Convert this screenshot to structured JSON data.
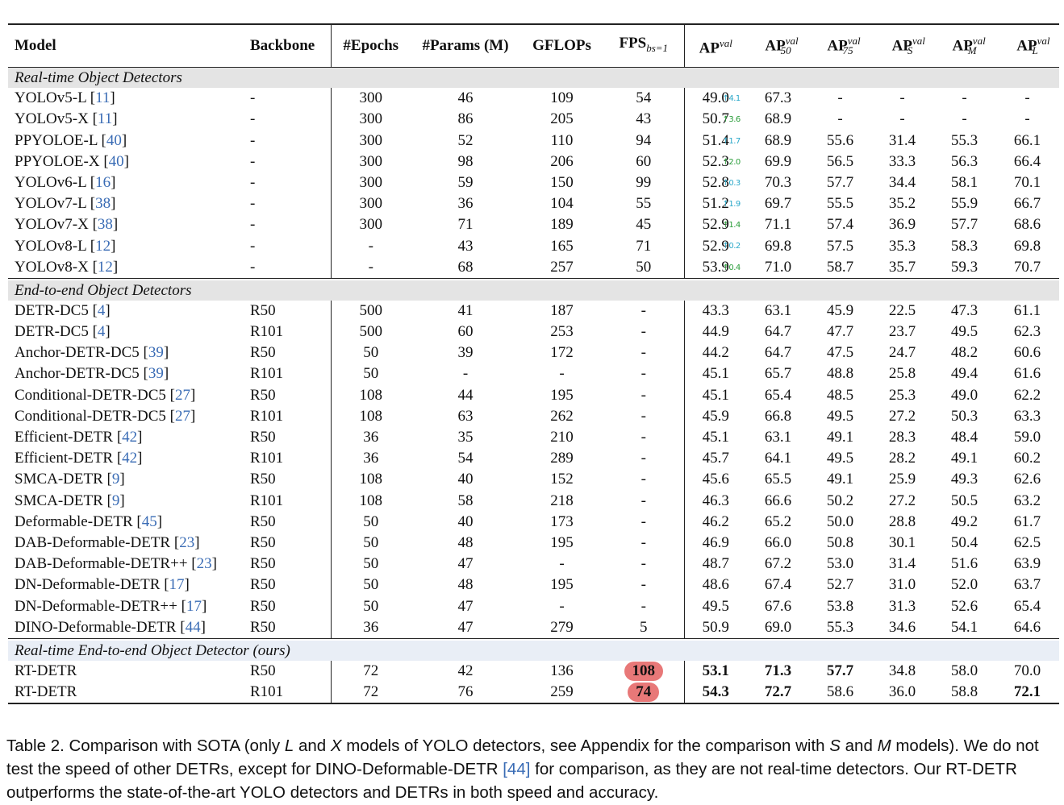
{
  "headers": {
    "model": "Model",
    "backbone": "Backbone",
    "epochs": "#Epochs",
    "params": "#Params (M)",
    "gflops": "GFLOPs",
    "fps": "FPS",
    "fps_sub": "bs=1",
    "ap": "AP",
    "ap_sup": "val",
    "ap50": "AP",
    "ap50_sup": "val",
    "ap50_sub": "50",
    "ap75": "AP",
    "ap75_sup": "val",
    "ap75_sub": "75",
    "aps": "AP",
    "aps_sup": "val",
    "aps_sub": "S",
    "apm": "AP",
    "apm_sup": "val",
    "apm_sub": "M",
    "apl": "AP",
    "apl_sup": "val",
    "apl_sub": "L"
  },
  "sections": [
    {
      "title": "Real-time Object Detectors",
      "rows": [
        {
          "model": "YOLOv5-L",
          "ref": "11",
          "backbone": "-",
          "epochs": "300",
          "params": "46",
          "gflops": "109",
          "fps": "54",
          "ap": "49.0",
          "ap50": "67.3",
          "ap75": "-",
          "aps": "-",
          "apm": "-",
          "apl": "-",
          "note": "↑4.1",
          "note_color": "blue"
        },
        {
          "model": "YOLOv5-X",
          "ref": "11",
          "backbone": "-",
          "epochs": "300",
          "params": "86",
          "gflops": "205",
          "fps": "43",
          "ap": "50.7",
          "ap50": "68.9",
          "ap75": "-",
          "aps": "-",
          "apm": "-",
          "apl": "-",
          "note": "↑3.6",
          "note_color": "green"
        },
        {
          "model": "PPYOLOE-L",
          "ref": "40",
          "backbone": "-",
          "epochs": "300",
          "params": "52",
          "gflops": "110",
          "fps": "94",
          "ap": "51.4",
          "ap50": "68.9",
          "ap75": "55.6",
          "aps": "31.4",
          "apm": "55.3",
          "apl": "66.1",
          "note": "↑1.7",
          "note_color": "blue"
        },
        {
          "model": "PPYOLOE-X",
          "ref": "40",
          "backbone": "-",
          "epochs": "300",
          "params": "98",
          "gflops": "206",
          "fps": "60",
          "ap": "52.3",
          "ap50": "69.9",
          "ap75": "56.5",
          "aps": "33.3",
          "apm": "56.3",
          "apl": "66.4",
          "note": "↑2.0",
          "note_color": "green"
        },
        {
          "model": "YOLOv6-L",
          "ref": "16",
          "backbone": "-",
          "epochs": "300",
          "params": "59",
          "gflops": "150",
          "fps": "99",
          "ap": "52.8",
          "ap50": "70.3",
          "ap75": "57.7",
          "aps": "34.4",
          "apm": "58.1",
          "apl": "70.1",
          "note": "↑0.3",
          "note_color": "blue"
        },
        {
          "model": "YOLOv7-L",
          "ref": "38",
          "backbone": "-",
          "epochs": "300",
          "params": "36",
          "gflops": "104",
          "fps": "55",
          "ap": "51.2",
          "ap50": "69.7",
          "ap75": "55.5",
          "aps": "35.2",
          "apm": "55.9",
          "apl": "66.7",
          "note": "↑1.9",
          "note_color": "blue"
        },
        {
          "model": "YOLOv7-X",
          "ref": "38",
          "backbone": "-",
          "epochs": "300",
          "params": "71",
          "gflops": "189",
          "fps": "45",
          "ap": "52.9",
          "ap50": "71.1",
          "ap75": "57.4",
          "aps": "36.9",
          "apm": "57.7",
          "apl": "68.6",
          "note": "↑1.4",
          "note_color": "green"
        },
        {
          "model": "YOLOv8-L",
          "ref": "12",
          "backbone": "-",
          "epochs": "-",
          "params": "43",
          "gflops": "165",
          "fps": "71",
          "ap": "52.9",
          "ap50": "69.8",
          "ap75": "57.5",
          "aps": "35.3",
          "apm": "58.3",
          "apl": "69.8",
          "note": "↑0.2",
          "note_color": "blue"
        },
        {
          "model": "YOLOv8-X",
          "ref": "12",
          "backbone": "-",
          "epochs": "-",
          "params": "68",
          "gflops": "257",
          "fps": "50",
          "ap": "53.9",
          "ap50": "71.0",
          "ap75": "58.7",
          "aps": "35.7",
          "apm": "59.3",
          "apl": "70.7",
          "note": "↑0.4",
          "note_color": "green"
        }
      ]
    },
    {
      "title": "End-to-end Object Detectors",
      "rows": [
        {
          "model": "DETR-DC5",
          "ref": "4",
          "backbone": "R50",
          "epochs": "500",
          "params": "41",
          "gflops": "187",
          "fps": "-",
          "ap": "43.3",
          "ap50": "63.1",
          "ap75": "45.9",
          "aps": "22.5",
          "apm": "47.3",
          "apl": "61.1"
        },
        {
          "model": "DETR-DC5",
          "ref": "4",
          "backbone": "R101",
          "epochs": "500",
          "params": "60",
          "gflops": "253",
          "fps": "-",
          "ap": "44.9",
          "ap50": "64.7",
          "ap75": "47.7",
          "aps": "23.7",
          "apm": "49.5",
          "apl": "62.3"
        },
        {
          "model": "Anchor-DETR-DC5",
          "ref": "39",
          "backbone": "R50",
          "epochs": "50",
          "params": "39",
          "gflops": "172",
          "fps": "-",
          "ap": "44.2",
          "ap50": "64.7",
          "ap75": "47.5",
          "aps": "24.7",
          "apm": "48.2",
          "apl": "60.6"
        },
        {
          "model": "Anchor-DETR-DC5",
          "ref": "39",
          "backbone": "R101",
          "epochs": "50",
          "params": "-",
          "gflops": "-",
          "fps": "-",
          "ap": "45.1",
          "ap50": "65.7",
          "ap75": "48.8",
          "aps": "25.8",
          "apm": "49.4",
          "apl": "61.6"
        },
        {
          "model": "Conditional-DETR-DC5",
          "ref": "27",
          "backbone": "R50",
          "epochs": "108",
          "params": "44",
          "gflops": "195",
          "fps": "-",
          "ap": "45.1",
          "ap50": "65.4",
          "ap75": "48.5",
          "aps": "25.3",
          "apm": "49.0",
          "apl": "62.2"
        },
        {
          "model": "Conditional-DETR-DC5",
          "ref": "27",
          "backbone": "R101",
          "epochs": "108",
          "params": "63",
          "gflops": "262",
          "fps": "-",
          "ap": "45.9",
          "ap50": "66.8",
          "ap75": "49.5",
          "aps": "27.2",
          "apm": "50.3",
          "apl": "63.3"
        },
        {
          "model": "Efficient-DETR",
          "ref": "42",
          "backbone": "R50",
          "epochs": "36",
          "params": "35",
          "gflops": "210",
          "fps": "-",
          "ap": "45.1",
          "ap50": "63.1",
          "ap75": "49.1",
          "aps": "28.3",
          "apm": "48.4",
          "apl": "59.0"
        },
        {
          "model": "Efficient-DETR",
          "ref": "42",
          "backbone": "R101",
          "epochs": "36",
          "params": "54",
          "gflops": "289",
          "fps": "-",
          "ap": "45.7",
          "ap50": "64.1",
          "ap75": "49.5",
          "aps": "28.2",
          "apm": "49.1",
          "apl": "60.2"
        },
        {
          "model": "SMCA-DETR",
          "ref": "9",
          "backbone": "R50",
          "epochs": "108",
          "params": "40",
          "gflops": "152",
          "fps": "-",
          "ap": "45.6",
          "ap50": "65.5",
          "ap75": "49.1",
          "aps": "25.9",
          "apm": "49.3",
          "apl": "62.6"
        },
        {
          "model": "SMCA-DETR",
          "ref": "9",
          "backbone": "R101",
          "epochs": "108",
          "params": "58",
          "gflops": "218",
          "fps": "-",
          "ap": "46.3",
          "ap50": "66.6",
          "ap75": "50.2",
          "aps": "27.2",
          "apm": "50.5",
          "apl": "63.2"
        },
        {
          "model": "Deformable-DETR",
          "ref": "45",
          "backbone": "R50",
          "epochs": "50",
          "params": "40",
          "gflops": "173",
          "fps": "-",
          "ap": "46.2",
          "ap50": "65.2",
          "ap75": "50.0",
          "aps": "28.8",
          "apm": "49.2",
          "apl": "61.7"
        },
        {
          "model": "DAB-Deformable-DETR",
          "ref": "23",
          "backbone": "R50",
          "epochs": "50",
          "params": "48",
          "gflops": "195",
          "fps": "-",
          "ap": "46.9",
          "ap50": "66.0",
          "ap75": "50.8",
          "aps": "30.1",
          "apm": "50.4",
          "apl": "62.5"
        },
        {
          "model": "DAB-Deformable-DETR++",
          "ref": "23",
          "backbone": "R50",
          "epochs": "50",
          "params": "47",
          "gflops": "-",
          "fps": "-",
          "ap": "48.7",
          "ap50": "67.2",
          "ap75": "53.0",
          "aps": "31.4",
          "apm": "51.6",
          "apl": "63.9"
        },
        {
          "model": "DN-Deformable-DETR",
          "ref": "17",
          "backbone": "R50",
          "epochs": "50",
          "params": "48",
          "gflops": "195",
          "fps": "-",
          "ap": "48.6",
          "ap50": "67.4",
          "ap75": "52.7",
          "aps": "31.0",
          "apm": "52.0",
          "apl": "63.7"
        },
        {
          "model": "DN-Deformable-DETR++",
          "ref": "17",
          "backbone": "R50",
          "epochs": "50",
          "params": "47",
          "gflops": "-",
          "fps": "-",
          "ap": "49.5",
          "ap50": "67.6",
          "ap75": "53.8",
          "aps": "31.3",
          "apm": "52.6",
          "apl": "65.4"
        },
        {
          "model": "DINO-Deformable-DETR",
          "ref": "44",
          "backbone": "R50",
          "epochs": "36",
          "params": "47",
          "gflops": "279",
          "fps": "5",
          "ap": "50.9",
          "ap50": "69.0",
          "ap75": "55.3",
          "aps": "34.6",
          "apm": "54.1",
          "apl": "64.6"
        }
      ]
    },
    {
      "title": "Real-time End-to-end Object Detector (ours)",
      "rows": [
        {
          "model": "RT-DETR",
          "ref": "",
          "backbone": "R50",
          "epochs": "72",
          "params": "42",
          "gflops": "136",
          "fps": "108",
          "ap": "53.1",
          "ap50": "71.3",
          "ap75": "57.7",
          "aps": "34.8",
          "apm": "58.0",
          "apl": "70.0",
          "highlight_fps": true,
          "bold": [
            "ap",
            "ap50",
            "ap75"
          ]
        },
        {
          "model": "RT-DETR",
          "ref": "",
          "backbone": "R101",
          "epochs": "72",
          "params": "76",
          "gflops": "259",
          "fps": "74",
          "ap": "54.3",
          "ap50": "72.7",
          "ap75": "58.6",
          "aps": "36.0",
          "apm": "58.8",
          "apl": "72.1",
          "highlight_fps": true,
          "bold": [
            "ap",
            "ap50",
            "apl"
          ]
        }
      ]
    }
  ],
  "caption": {
    "part1": "Table 2. Comparison with SOTA (only ",
    "L": "L",
    "part2": " and ",
    "X": "X",
    "part3": " models of YOLO detectors, see Appendix for the comparison with ",
    "S": "S",
    "part4": " and ",
    "M": "M",
    "part5": " models). We do not test the speed of other DETRs, except for DINO-Deformable-DETR ",
    "ref": "[44]",
    "part6": " for comparison, as they are not real-time detectors. Our RT-DETR outperforms the state-of-the-art YOLO detectors and DETRs in both speed and accuracy."
  },
  "colors": {
    "ref_link": "#3a6cb5",
    "fps_highlight": "#e87878",
    "section_bg": "#e4e4e4",
    "ours_section_bg": "#e9eef6",
    "anno_green": "#2a9d3a",
    "anno_blue": "#2aa8c9"
  }
}
